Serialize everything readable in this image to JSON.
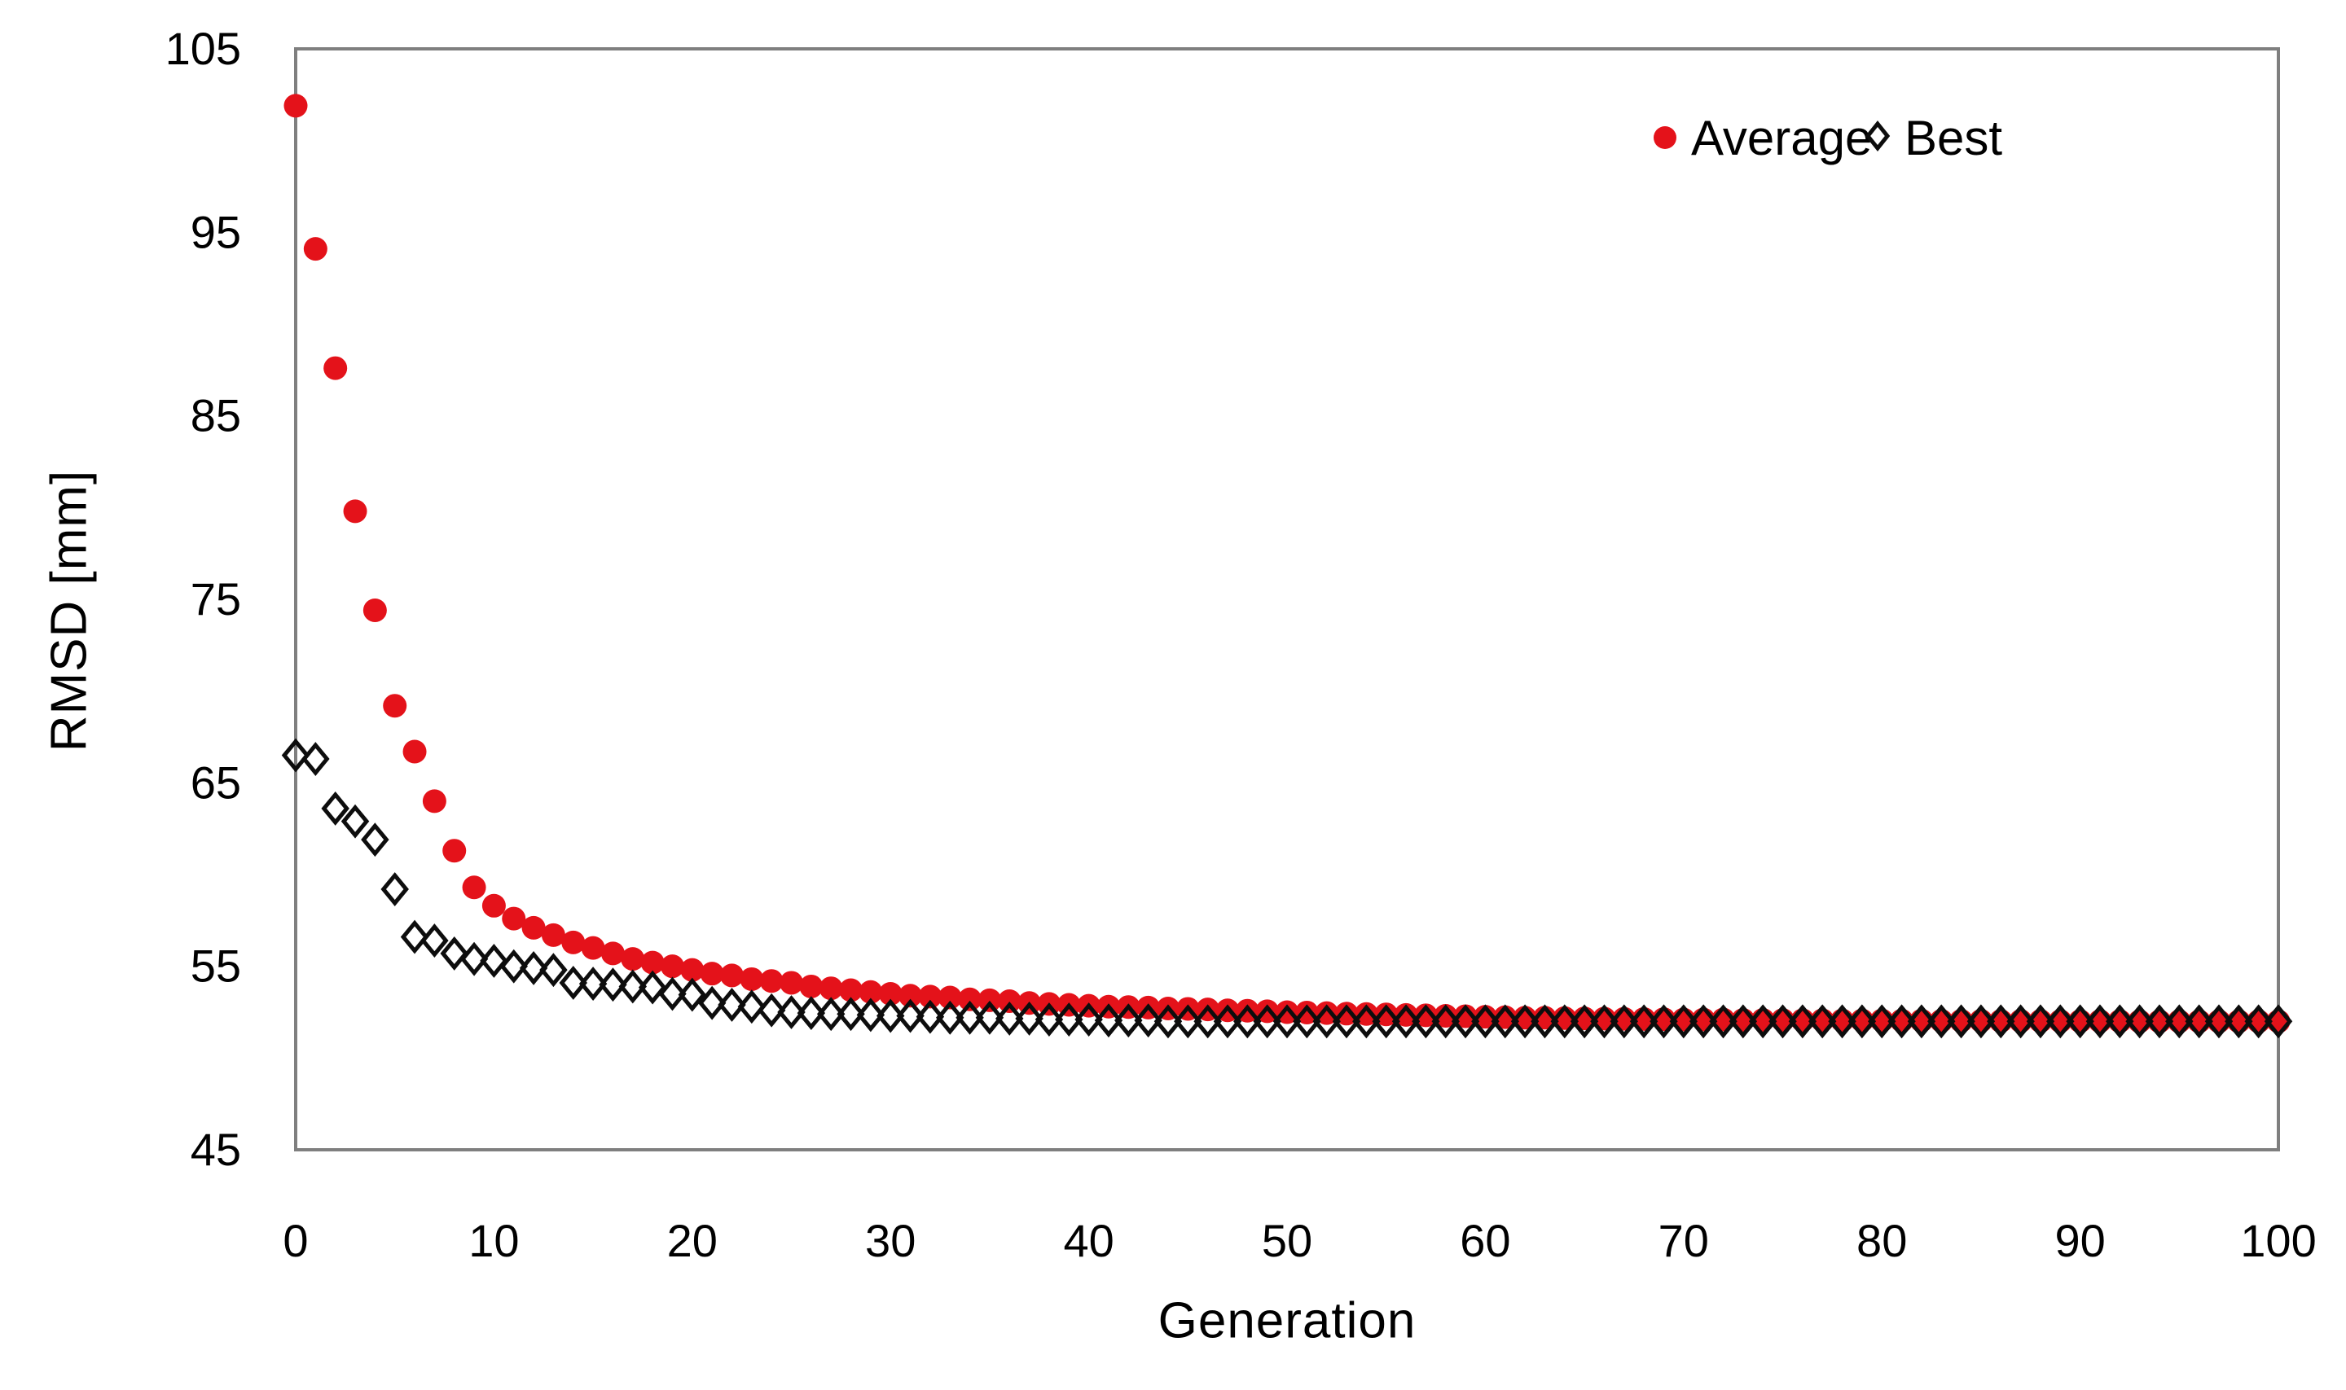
{
  "page": {
    "background": "#ffffff",
    "text_color": "#000000",
    "axis_color": "#7f7f7f"
  },
  "chart_data": {
    "type": "scatter",
    "title": "",
    "xlabel": "Generation",
    "ylabel": "RMSD [mm]",
    "xlim": [
      0,
      100
    ],
    "ylim": [
      45,
      105
    ],
    "x_ticks": [
      0,
      10,
      20,
      30,
      40,
      50,
      60,
      70,
      80,
      90,
      100
    ],
    "y_ticks": [
      45,
      55,
      65,
      75,
      85,
      95,
      105
    ],
    "grid": "off",
    "legend_position": "top-right-inside",
    "series": [
      {
        "name": "Average",
        "marker": "filled-circle",
        "color": "#e4121a",
        "x_start": 0,
        "x_step": 1,
        "y": [
          101.9,
          94.1,
          87.6,
          79.8,
          74.4,
          69.2,
          66.7,
          64.0,
          61.3,
          59.3,
          58.3,
          57.6,
          57.1,
          56.7,
          56.3,
          56.0,
          55.7,
          55.4,
          55.2,
          55.0,
          54.8,
          54.6,
          54.5,
          54.3,
          54.2,
          54.1,
          53.9,
          53.8,
          53.7,
          53.6,
          53.5,
          53.4,
          53.35,
          53.3,
          53.2,
          53.15,
          53.1,
          53.0,
          52.95,
          52.9,
          52.85,
          52.8,
          52.78,
          52.75,
          52.7,
          52.68,
          52.65,
          52.6,
          52.58,
          52.55,
          52.5,
          52.48,
          52.45,
          52.42,
          52.4,
          52.38,
          52.35,
          52.33,
          52.3,
          52.28,
          52.25,
          52.23,
          52.2,
          52.2,
          52.18,
          52.16,
          52.15,
          52.14,
          52.13,
          52.12,
          52.1,
          52.1,
          52.1,
          52.08,
          52.08,
          52.07,
          52.06,
          52.06,
          52.05,
          52.05,
          52.05,
          52.04,
          52.04,
          52.03,
          52.03,
          52.03,
          52.02,
          52.02,
          52.02,
          52.01,
          52.01,
          52.01,
          52.01,
          52.0,
          52.0,
          52.0,
          52.0,
          52.0,
          52.0,
          52.0,
          52.0
        ]
      },
      {
        "name": "Best",
        "marker": "open-diamond",
        "color": "#0d0d0d",
        "x_start": 0,
        "x_step": 1,
        "y": [
          66.5,
          66.3,
          63.6,
          62.9,
          61.9,
          59.2,
          56.6,
          56.4,
          55.7,
          55.4,
          55.3,
          55.0,
          54.9,
          54.8,
          54.1,
          54.05,
          54.0,
          53.9,
          53.85,
          53.5,
          53.45,
          53.0,
          52.9,
          52.8,
          52.6,
          52.5,
          52.45,
          52.4,
          52.4,
          52.35,
          52.3,
          52.3,
          52.25,
          52.2,
          52.2,
          52.2,
          52.15,
          52.15,
          52.1,
          52.1,
          52.1,
          52.05,
          52.05,
          52.05,
          52.0,
          52.0,
          52.0,
          52.0,
          52.0,
          52.0,
          52.0,
          52.0,
          52.0,
          52.0,
          52.0,
          52.0,
          52.0,
          52.0,
          52.0,
          52.0,
          52.0,
          52.0,
          52.0,
          52.0,
          52.0,
          52.0,
          52.0,
          52.0,
          52.0,
          52.0,
          52.0,
          52.0,
          52.0,
          52.0,
          52.0,
          52.0,
          52.0,
          52.0,
          52.0,
          52.0,
          52.0,
          52.0,
          52.0,
          52.0,
          52.0,
          52.0,
          52.0,
          52.0,
          52.0,
          52.0,
          52.0,
          52.0,
          52.0,
          52.0,
          52.0,
          52.0,
          52.0,
          52.0,
          52.0,
          52.0,
          52.0
        ]
      }
    ]
  }
}
